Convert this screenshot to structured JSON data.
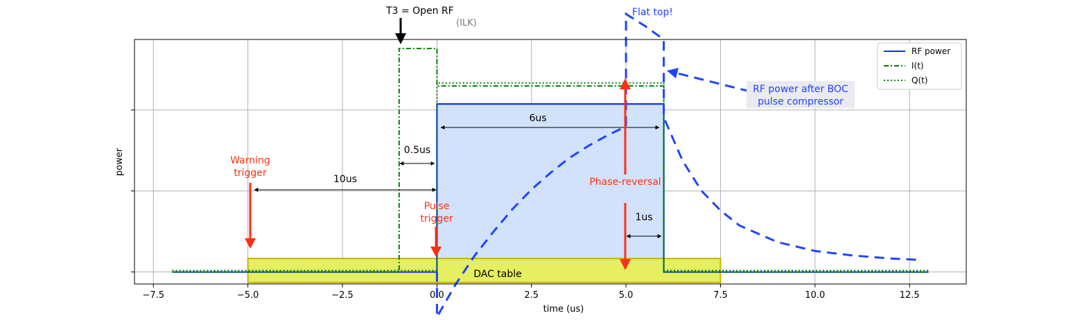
{
  "chart_data": {
    "type": "line",
    "xlabel": "time  (us)",
    "ylabel": "power",
    "xlim": [
      -8.0,
      14.0
    ],
    "ylim": [
      -0.08,
      1.55
    ],
    "x_ticks": [
      -7.5,
      -5.0,
      -2.5,
      0.0,
      2.5,
      5.0,
      7.5,
      10.0,
      12.5
    ],
    "x_tick_labels": [
      "−7.5",
      "−5.0",
      "−2.5",
      "0.0",
      "2.5",
      "5.0",
      "7.5",
      "10.0",
      "12.5"
    ],
    "y_ticks": [
      0.0,
      0.54,
      1.08
    ],
    "grid": true,
    "legend_placement": "top-right",
    "legend": [
      {
        "name": "RF power",
        "color": "#0b2fff",
        "style": "solid"
      },
      {
        "name": "I(t)",
        "color": "#008000",
        "style": "dashdot"
      },
      {
        "name": "Q(t)",
        "color": "#008000",
        "style": "dotted"
      }
    ],
    "series": [
      {
        "name": "RF power",
        "x": [
          -7.0,
          0.0,
          0.0,
          6.0,
          6.0,
          13.0
        ],
        "y": [
          0.0,
          0.0,
          1.12,
          1.12,
          0.0,
          0.0
        ]
      },
      {
        "name": "I(t)",
        "x": [
          -7.0,
          -1.0,
          -1.0,
          0.0,
          0.0,
          5.0,
          5.0,
          6.0,
          6.0,
          13.0
        ],
        "y": [
          0.0,
          0.0,
          1.49,
          1.49,
          1.24,
          1.24,
          1.24,
          1.24,
          0.0,
          0.0
        ]
      },
      {
        "name": "Q(t)",
        "x": [
          -7.0,
          0.0,
          0.0,
          6.0,
          6.0,
          13.0
        ],
        "y": [
          0.01,
          0.01,
          1.26,
          1.26,
          0.01,
          0.01
        ]
      },
      {
        "name": "RF power after BOC pulse compressor",
        "x": [
          0.0,
          0.0,
          0.5,
          1.0,
          1.5,
          2.0,
          2.5,
          3.0,
          3.5,
          4.0,
          4.5,
          5.0,
          5.0,
          5.5,
          6.0,
          6.0,
          6.5,
          7.0,
          7.5,
          8.0,
          9.0,
          10.0,
          11.0,
          12.0,
          12.8
        ],
        "y": [
          0.0,
          -0.3,
          -0.08,
          0.11,
          0.27,
          0.42,
          0.55,
          0.66,
          0.76,
          0.84,
          0.91,
          0.97,
          1.72,
          1.64,
          1.55,
          1.03,
          0.74,
          0.54,
          0.41,
          0.31,
          0.2,
          0.14,
          0.11,
          0.09,
          0.08
        ]
      }
    ],
    "regions": [
      {
        "label": "DAC table",
        "x": [
          -5.0,
          7.5
        ],
        "y": [
          -0.07,
          0.09
        ],
        "color": "#e5ef5f"
      },
      {
        "label": "",
        "x": [
          0.0,
          6.0
        ],
        "y": [
          0.0,
          1.12
        ],
        "color": "#d2e2fb"
      }
    ],
    "annotations": {
      "t3": "T3 = Open RF",
      "ilk": "(ILK)",
      "flat_top": "Flat top!",
      "boc_line1": "RF power after BOC",
      "boc_line2": "pulse compressor",
      "warning_line1": "Warning",
      "warning_line2": "trigger",
      "pulse_line1": "Pulse",
      "pulse_line2": "trigger",
      "phase_reversal": "Phase-reversal",
      "span_10us": "10us",
      "span_05us": "0.5us",
      "span_6us": "6us",
      "span_1us": "1us",
      "dac_table": "DAC table"
    }
  }
}
